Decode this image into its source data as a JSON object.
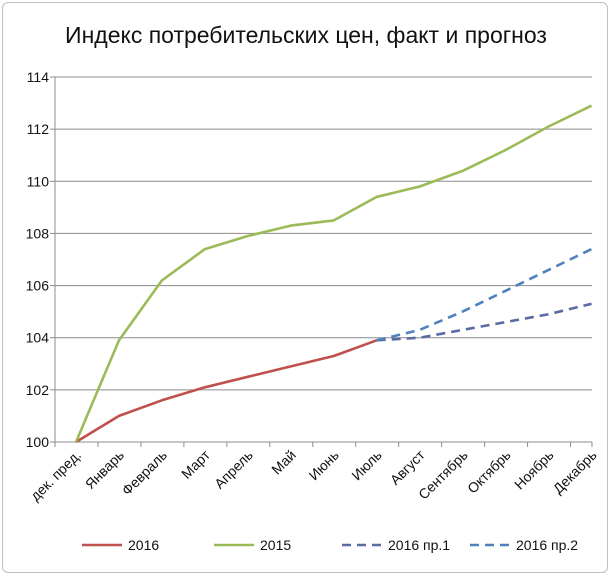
{
  "chart_data": {
    "type": "line",
    "title": "Индекс потребительских цен, факт и прогноз",
    "xlabel": "",
    "ylabel": "",
    "ylim": [
      100,
      114
    ],
    "yticks": [
      100,
      102,
      104,
      106,
      108,
      110,
      112,
      114
    ],
    "grid": true,
    "legend_position": "bottom",
    "categories": [
      "дек. пред.",
      "Январь",
      "Февраль",
      "Март",
      "Апрель",
      "Май",
      "Июнь",
      "Июль",
      "Август",
      "Сентябрь",
      "Октябрь",
      "Ноябрь",
      "Декабрь"
    ],
    "series": [
      {
        "name": "2016",
        "color": "#c0504d",
        "dashed": false,
        "values": [
          100,
          101,
          101.6,
          102.1,
          102.5,
          102.9,
          103.3,
          103.9,
          null,
          null,
          null,
          null,
          null
        ]
      },
      {
        "name": "2015",
        "color": "#9bbb59",
        "dashed": false,
        "values": [
          100,
          103.9,
          106.2,
          107.4,
          107.9,
          108.3,
          108.5,
          109.4,
          109.8,
          110.4,
          111.2,
          112.1,
          112.9
        ]
      },
      {
        "name": "2016 пр.1",
        "color": "#5a6aa2",
        "dashed": true,
        "values": [
          null,
          null,
          null,
          null,
          null,
          null,
          null,
          103.9,
          104.0,
          104.3,
          104.6,
          104.9,
          105.3
        ]
      },
      {
        "name": "2016 пр.2",
        "color": "#4f81bd",
        "dashed": true,
        "values": [
          null,
          null,
          null,
          null,
          null,
          null,
          null,
          103.9,
          104.3,
          105.0,
          105.8,
          106.6,
          107.4
        ]
      }
    ]
  }
}
